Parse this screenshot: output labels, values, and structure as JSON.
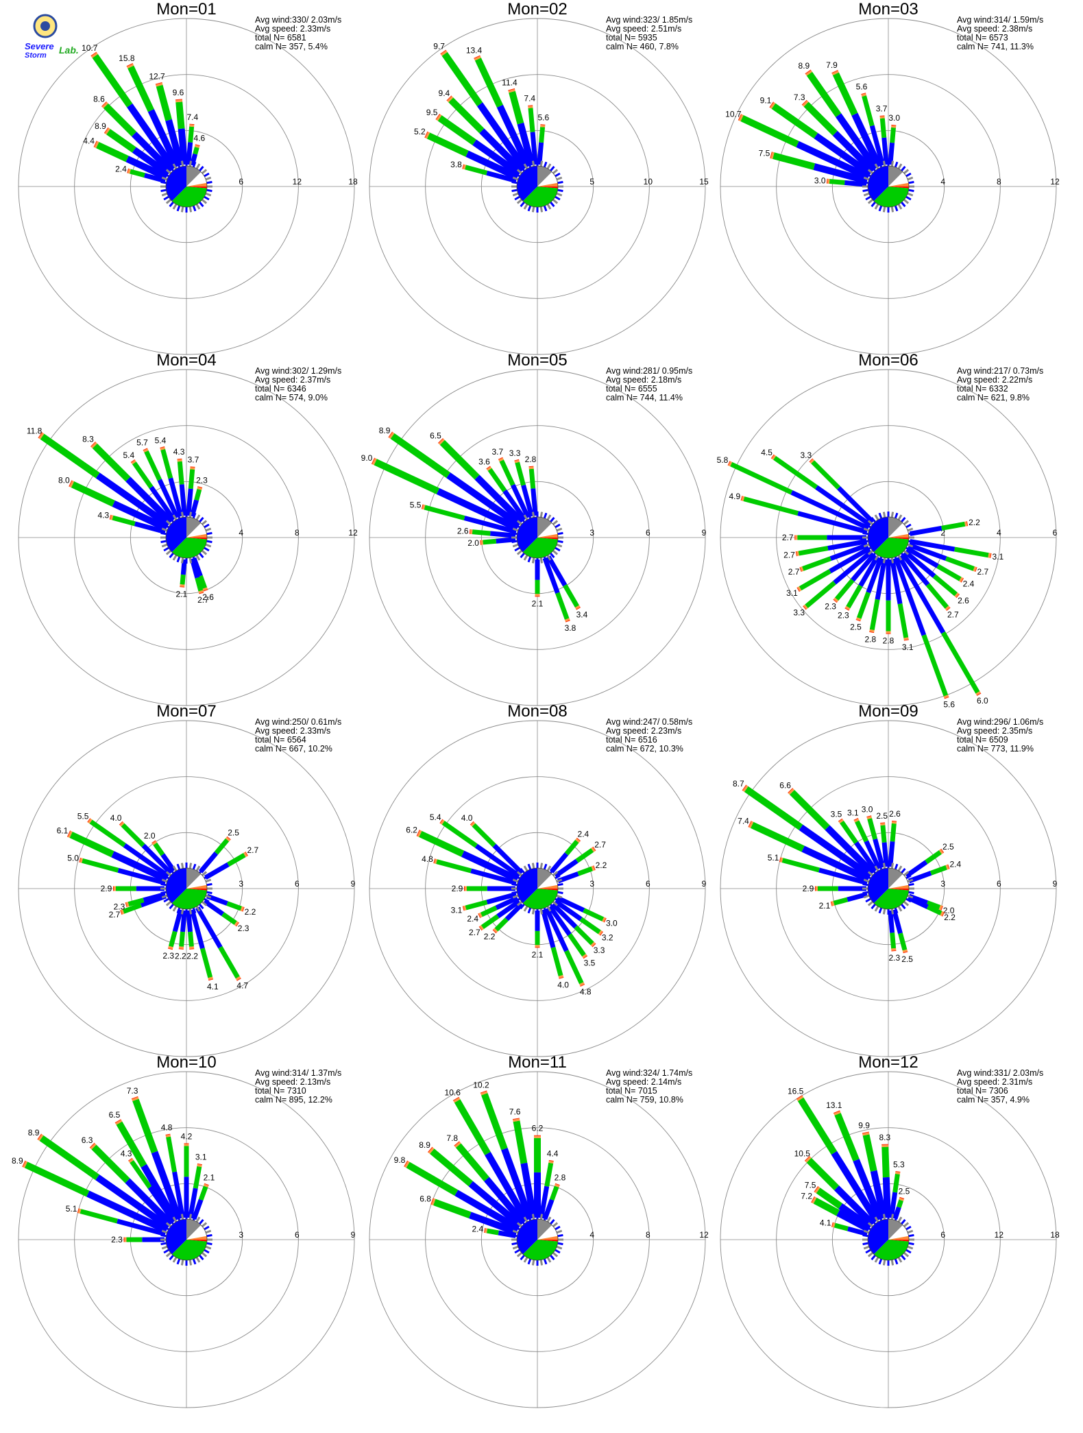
{
  "logo": {
    "word1": "Severe",
    "word2": "Storm",
    "word3": "Lab."
  },
  "colors": {
    "calm_blue": "#0000ff",
    "calm_green": "#00cc00",
    "calm_gray": "#888888",
    "calm_orange": "#ff8833",
    "calm_red": "#ff0000",
    "bar_blue": "#0000ff",
    "bar_green": "#00cc00",
    "bar_orange": "#ff9944",
    "bar_red": "#ff2200",
    "grid": "#888888"
  },
  "chart_data": [
    {
      "type": "polar-bar",
      "title": "Mon=01",
      "stats": [
        "Avg wind:330/ 2.03m/s",
        "Avg speed: 2.33m/s",
        "total N=      6581",
        "calm N=    357,   5.4%"
      ],
      "rings": [
        6,
        12,
        18
      ],
      "bars": [
        {
          "dir": 295,
          "v": 8.9
        },
        {
          "dir": 305,
          "v": 8.6
        },
        {
          "dir": 315,
          "v": 10.7
        },
        {
          "dir": 325,
          "v": 15.8
        },
        {
          "dir": 335,
          "v": 12.7
        },
        {
          "dir": 345,
          "v": 9.6
        },
        {
          "dir": 355,
          "v": 7.4
        },
        {
          "dir": 5,
          "v": 4.6
        },
        {
          "dir": 15,
          "v": 2.4
        },
        {
          "dir": 285,
          "v": 4.4
        }
      ],
      "labels": [
        "4.4",
        "8.9",
        "8.6",
        "10.7",
        "15.8",
        "12.7",
        "9.6",
        "7.4",
        "4.6",
        "2.4"
      ]
    },
    {
      "type": "polar-bar",
      "title": "Mon=02",
      "stats": [
        "Avg wind:323/ 1.85m/s",
        "Avg speed: 2.51m/s",
        "total N=      5935",
        "calm N=    460,   7.8%"
      ],
      "rings": [
        5,
        10,
        15
      ],
      "bars": [
        {
          "dir": 295,
          "v": 9.5
        },
        {
          "dir": 305,
          "v": 9.4
        },
        {
          "dir": 315,
          "v": 9.7
        },
        {
          "dir": 325,
          "v": 13.4
        },
        {
          "dir": 335,
          "v": 11.4
        },
        {
          "dir": 345,
          "v": 7.4
        },
        {
          "dir": 355,
          "v": 5.6
        },
        {
          "dir": 5,
          "v": 3.8
        },
        {
          "dir": 285,
          "v": 5.2
        }
      ],
      "labels": [
        "5.2",
        "9.5",
        "9.4",
        "9.7",
        "13.4",
        "11.4",
        "7.4",
        "5.6",
        "3.8"
      ]
    },
    {
      "type": "polar-bar",
      "title": "Mon=03",
      "stats": [
        "Avg wind:314/ 1.59m/s",
        "Avg speed: 2.38m/s",
        "total N=      6573",
        "calm N=    741,  11.3%"
      ],
      "rings": [
        4,
        8,
        12
      ],
      "bars": [
        {
          "dir": 275,
          "v": 3.0
        },
        {
          "dir": 285,
          "v": 7.5
        },
        {
          "dir": 295,
          "v": 10.7
        },
        {
          "dir": 305,
          "v": 9.1
        },
        {
          "dir": 315,
          "v": 7.3
        },
        {
          "dir": 325,
          "v": 8.9
        },
        {
          "dir": 335,
          "v": 7.9
        },
        {
          "dir": 345,
          "v": 5.6
        },
        {
          "dir": 355,
          "v": 3.7
        },
        {
          "dir": 5,
          "v": 3.0
        }
      ],
      "labels": [
        "3.0",
        "7.5",
        "10.7",
        "9.1",
        "7.3",
        "8.9",
        "7.9",
        "5.6",
        "3.7",
        "3.0"
      ]
    },
    {
      "type": "polar-bar",
      "title": "Mon=04",
      "stats": [
        "Avg wind:302/ 1.29m/s",
        "Avg speed: 2.37m/s",
        "total N=      6346",
        "calm N=    574,   9.0%"
      ],
      "rings": [
        4,
        8,
        12
      ],
      "bars": [
        {
          "dir": 285,
          "v": 4.3
        },
        {
          "dir": 295,
          "v": 8.0
        },
        {
          "dir": 305,
          "v": 11.8
        },
        {
          "dir": 315,
          "v": 8.3
        },
        {
          "dir": 325,
          "v": 5.4
        },
        {
          "dir": 335,
          "v": 5.7
        },
        {
          "dir": 345,
          "v": 5.4
        },
        {
          "dir": 355,
          "v": 4.3
        },
        {
          "dir": 5,
          "v": 3.7
        },
        {
          "dir": 15,
          "v": 2.3
        },
        {
          "dir": 160,
          "v": 2.6
        },
        {
          "dir": 165,
          "v": 2.7
        },
        {
          "dir": 185,
          "v": 2.1
        }
      ],
      "labels": [
        "4.3",
        "8.0",
        "11.8",
        "8.3",
        "5.4",
        "5.7",
        "5.4",
        "4.3",
        "3.7",
        "2.3",
        "2.6",
        "2.7",
        "2.1"
      ]
    },
    {
      "type": "polar-bar",
      "title": "Mon=05",
      "stats": [
        "Avg wind:281/ 0.95m/s",
        "Avg speed: 2.18m/s",
        "total N=      6555",
        "calm N=    744,  11.4%"
      ],
      "rings": [
        3,
        6,
        9
      ],
      "bars": [
        {
          "dir": 265,
          "v": 2.0
        },
        {
          "dir": 275,
          "v": 2.6
        },
        {
          "dir": 285,
          "v": 5.5
        },
        {
          "dir": 295,
          "v": 9.0
        },
        {
          "dir": 305,
          "v": 8.9
        },
        {
          "dir": 315,
          "v": 6.5
        },
        {
          "dir": 325,
          "v": 3.6
        },
        {
          "dir": 335,
          "v": 3.7
        },
        {
          "dir": 345,
          "v": 3.3
        },
        {
          "dir": 355,
          "v": 2.8
        },
        {
          "dir": 150,
          "v": 3.4
        },
        {
          "dir": 160,
          "v": 3.8
        },
        {
          "dir": 180,
          "v": 2.1
        }
      ],
      "labels": [
        "2.0",
        "2.6",
        "5.5",
        "9.0",
        "8.9",
        "6.5",
        "3.6",
        "3.7",
        "3.3",
        "2.8",
        "3.4",
        "3.8",
        "2.1"
      ]
    },
    {
      "type": "polar-bar",
      "title": "Mon=06",
      "stats": [
        "Avg wind:217/ 0.73m/s",
        "Avg speed: 2.22m/s",
        "total N=      6332",
        "calm N=    621,   9.8%"
      ],
      "rings": [
        2,
        4,
        6
      ],
      "bars": [
        {
          "dir": 285,
          "v": 4.9
        },
        {
          "dir": 295,
          "v": 5.8
        },
        {
          "dir": 305,
          "v": 4.5
        },
        {
          "dir": 315,
          "v": 3.3
        },
        {
          "dir": 80,
          "v": 2.2
        },
        {
          "dir": 100,
          "v": 3.1
        },
        {
          "dir": 110,
          "v": 2.7
        },
        {
          "dir": 120,
          "v": 2.4
        },
        {
          "dir": 130,
          "v": 2.6
        },
        {
          "dir": 140,
          "v": 2.7
        },
        {
          "dir": 150,
          "v": 6.0
        },
        {
          "dir": 160,
          "v": 5.6
        },
        {
          "dir": 170,
          "v": 3.1
        },
        {
          "dir": 180,
          "v": 2.8
        },
        {
          "dir": 190,
          "v": 2.8
        },
        {
          "dir": 200,
          "v": 2.5
        },
        {
          "dir": 210,
          "v": 2.3
        },
        {
          "dir": 220,
          "v": 2.3
        },
        {
          "dir": 230,
          "v": 3.3
        },
        {
          "dir": 240,
          "v": 3.1
        },
        {
          "dir": 250,
          "v": 2.7
        },
        {
          "dir": 260,
          "v": 2.7
        },
        {
          "dir": 270,
          "v": 2.7
        }
      ],
      "labels": [
        "4.9",
        "5.8",
        "4.5",
        "3.3",
        "2.2",
        "3.1",
        "2.7",
        "2.4",
        "2.6",
        "2.7",
        "6.0",
        "5.6",
        "3.1",
        "2.8",
        "2.8",
        "2.5",
        "2.3",
        "2.3",
        "3.3",
        "3.1",
        "2.7",
        "2.7",
        "2.7"
      ]
    },
    {
      "type": "polar-bar",
      "title": "Mon=07",
      "stats": [
        "Avg wind:250/ 0.61m/s",
        "Avg speed: 2.33m/s",
        "total N=      6564",
        "calm N=    667,  10.2%"
      ],
      "rings": [
        3,
        6,
        9
      ],
      "bars": [
        {
          "dir": 285,
          "v": 5.0
        },
        {
          "dir": 295,
          "v": 6.1
        },
        {
          "dir": 305,
          "v": 5.5
        },
        {
          "dir": 315,
          "v": 4.0
        },
        {
          "dir": 325,
          "v": 2.0
        },
        {
          "dir": 150,
          "v": 4.7
        },
        {
          "dir": 165,
          "v": 4.1
        },
        {
          "dir": 175,
          "v": 2.2
        },
        {
          "dir": 185,
          "v": 2.2
        },
        {
          "dir": 195,
          "v": 2.3
        },
        {
          "dir": 270,
          "v": 2.9
        },
        {
          "dir": 250,
          "v": 2.7
        },
        {
          "dir": 255,
          "v": 2.3
        },
        {
          "dir": 40,
          "v": 2.5
        },
        {
          "dir": 60,
          "v": 2.7
        },
        {
          "dir": 110,
          "v": 2.2
        },
        {
          "dir": 125,
          "v": 2.3
        }
      ],
      "labels": [
        "5.0",
        "6.1",
        "5.5",
        "4.0",
        "2.0",
        "4.7",
        "4.1",
        "2.2",
        "2.2",
        "2.3",
        "2.9",
        "2.7",
        "2.3",
        "2.5",
        "2.7",
        "2.2",
        "2.3"
      ]
    },
    {
      "type": "polar-bar",
      "title": "Mon=08",
      "stats": [
        "Avg wind:247/ 0.58m/s",
        "Avg speed: 2.23m/s",
        "total N=      6516",
        "calm N=    672,  10.3%"
      ],
      "rings": [
        3,
        6,
        9
      ],
      "bars": [
        {
          "dir": 285,
          "v": 4.8
        },
        {
          "dir": 295,
          "v": 6.2
        },
        {
          "dir": 305,
          "v": 5.4
        },
        {
          "dir": 315,
          "v": 4.0
        },
        {
          "dir": 270,
          "v": 2.9
        },
        {
          "dir": 255,
          "v": 3.1
        },
        {
          "dir": 245,
          "v": 2.4
        },
        {
          "dir": 235,
          "v": 2.7
        },
        {
          "dir": 225,
          "v": 2.2
        },
        {
          "dir": 180,
          "v": 2.1
        },
        {
          "dir": 165,
          "v": 4.0
        },
        {
          "dir": 155,
          "v": 4.8
        },
        {
          "dir": 145,
          "v": 3.5
        },
        {
          "dir": 135,
          "v": 3.3
        },
        {
          "dir": 125,
          "v": 3.2
        },
        {
          "dir": 115,
          "v": 3.0
        },
        {
          "dir": 40,
          "v": 2.4
        },
        {
          "dir": 55,
          "v": 2.7
        },
        {
          "dir": 70,
          "v": 2.2
        }
      ],
      "labels": [
        "4.8",
        "6.2",
        "5.4",
        "4.0",
        "2.9",
        "3.1",
        "2.4",
        "2.7",
        "2.2",
        "2.1",
        "4.0",
        "4.8",
        "3.5",
        "3.3",
        "3.2",
        "3.0",
        "2.4",
        "2.7",
        "2.2"
      ]
    },
    {
      "type": "polar-bar",
      "title": "Mon=09",
      "stats": [
        "Avg wind:296/ 1.06m/s",
        "Avg speed: 2.35m/s",
        "total N=      6509",
        "calm N=    773,  11.9%"
      ],
      "rings": [
        3,
        6,
        9
      ],
      "bars": [
        {
          "dir": 270,
          "v": 2.9
        },
        {
          "dir": 285,
          "v": 5.1
        },
        {
          "dir": 295,
          "v": 7.4
        },
        {
          "dir": 305,
          "v": 8.7
        },
        {
          "dir": 315,
          "v": 6.6
        },
        {
          "dir": 325,
          "v": 3.5
        },
        {
          "dir": 335,
          "v": 3.1
        },
        {
          "dir": 345,
          "v": 3.0
        },
        {
          "dir": 355,
          "v": 2.5
        },
        {
          "dir": 5,
          "v": 2.6
        },
        {
          "dir": 55,
          "v": 2.5
        },
        {
          "dir": 70,
          "v": 2.4
        },
        {
          "dir": 110,
          "v": 2.0
        },
        {
          "dir": 115,
          "v": 2.2
        },
        {
          "dir": 165,
          "v": 2.5
        },
        {
          "dir": 175,
          "v": 2.3
        },
        {
          "dir": 255,
          "v": 2.1
        }
      ],
      "labels": [
        "2.9",
        "5.1",
        "7.4",
        "8.7",
        "6.6",
        "3.5",
        "3.1",
        "3.0",
        "2.5",
        "2.6",
        "2.5",
        "2.4",
        "2.0",
        "2.2",
        "2.5",
        "2.3",
        "2.1"
      ]
    },
    {
      "type": "polar-bar",
      "title": "Mon=10",
      "stats": [
        "Avg wind:314/ 1.37m/s",
        "Avg speed: 2.13m/s",
        "total N=      7310",
        "calm N=    895,  12.2%"
      ],
      "rings": [
        3,
        6,
        9
      ],
      "bars": [
        {
          "dir": 270,
          "v": 2.3
        },
        {
          "dir": 285,
          "v": 5.1
        },
        {
          "dir": 295,
          "v": 8.9
        },
        {
          "dir": 305,
          "v": 8.9
        },
        {
          "dir": 315,
          "v": 6.3
        },
        {
          "dir": 325,
          "v": 4.3
        },
        {
          "dir": 330,
          "v": 6.5
        },
        {
          "dir": 340,
          "v": 7.3
        },
        {
          "dir": 350,
          "v": 4.8
        },
        {
          "dir": 0,
          "v": 4.2
        },
        {
          "dir": 10,
          "v": 3.1
        },
        {
          "dir": 20,
          "v": 2.1
        }
      ],
      "labels": [
        "2.3",
        "5.1",
        "8.9",
        "8.9",
        "6.3",
        "4.3",
        "6.5",
        "7.3",
        "4.8",
        "4.2",
        "3.1",
        "2.1"
      ]
    },
    {
      "type": "polar-bar",
      "title": "Mon=11",
      "stats": [
        "Avg wind:324/ 1.74m/s",
        "Avg speed: 2.14m/s",
        "total N=      7015",
        "calm N=    759,  10.8%"
      ],
      "rings": [
        4,
        8,
        12
      ],
      "bars": [
        {
          "dir": 280,
          "v": 2.4
        },
        {
          "dir": 290,
          "v": 6.8
        },
        {
          "dir": 300,
          "v": 9.8
        },
        {
          "dir": 310,
          "v": 8.9
        },
        {
          "dir": 320,
          "v": 7.8
        },
        {
          "dir": 330,
          "v": 10.6
        },
        {
          "dir": 340,
          "v": 10.2
        },
        {
          "dir": 350,
          "v": 7.6
        },
        {
          "dir": 0,
          "v": 6.2
        },
        {
          "dir": 10,
          "v": 4.4
        },
        {
          "dir": 20,
          "v": 2.8
        }
      ],
      "labels": [
        "2.4",
        "6.8",
        "9.8",
        "8.9",
        "7.8",
        "10.6",
        "10.2",
        "7.6",
        "6.2",
        "4.4",
        "2.8"
      ]
    },
    {
      "type": "polar-bar",
      "title": "Mon=12",
      "stats": [
        "Avg wind:331/ 2.03m/s",
        "Avg speed: 2.31m/s",
        "total N=      7306",
        "calm N=    357,   4.9%"
      ],
      "rings": [
        6,
        12,
        18
      ],
      "bars": [
        {
          "dir": 285,
          "v": 4.1
        },
        {
          "dir": 298,
          "v": 7.2
        },
        {
          "dir": 305,
          "v": 7.5
        },
        {
          "dir": 315,
          "v": 10.5
        },
        {
          "dir": 328,
          "v": 16.5
        },
        {
          "dir": 338,
          "v": 13.1
        },
        {
          "dir": 348,
          "v": 9.9
        },
        {
          "dir": 358,
          "v": 8.3
        },
        {
          "dir": 8,
          "v": 5.3
        },
        {
          "dir": 18,
          "v": 2.5
        }
      ],
      "labels": [
        "4.1",
        "7.2",
        "7.5",
        "10.5",
        "16.5",
        "13.1",
        "9.9",
        "8.3",
        "5.3",
        "2.5"
      ]
    }
  ]
}
